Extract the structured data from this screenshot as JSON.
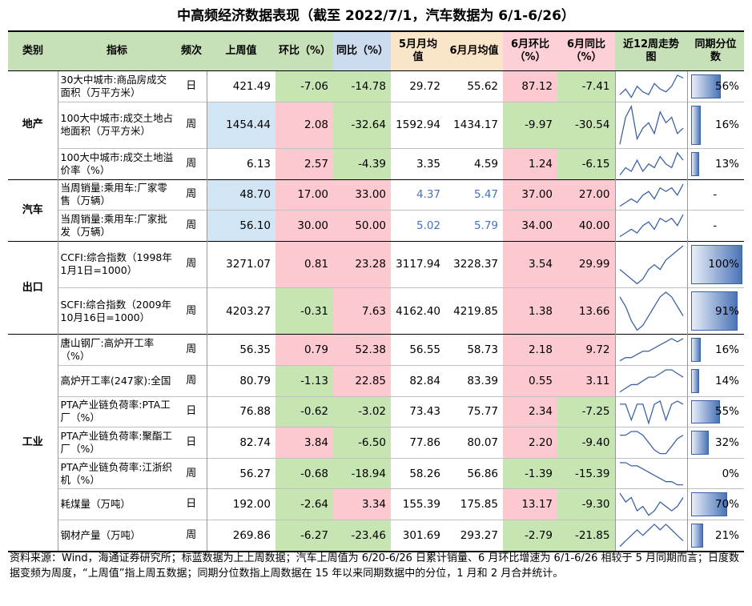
{
  "title": "中高频经济数据表现（截至 2022/7/1，汽车数据为 6/1-6/26）",
  "headers": {
    "category": "类别",
    "indicator": "指标",
    "frequency": "频次",
    "last_week": "上周值",
    "wow": "环比（%）",
    "yoy": "同比（%）",
    "may_avg": "5月月均值",
    "jun_avg": "6月月均值",
    "jun_mom": "6月环比（%）",
    "jun_yoy": "6月同比（%）",
    "trend": "近12周走势图",
    "percentile": "同期分位数"
  },
  "groups": [
    {
      "category": "地产",
      "rows": [
        {
          "indicator": "30大中城市:商品房成交面积（万平方米）",
          "freq": "日",
          "last": "421.49",
          "wow": "-7.06",
          "yoy": "-14.78",
          "may": "29.72",
          "jun": "55.62",
          "mom6": "87.12",
          "yoy6": "-7.41",
          "pct": "56%",
          "pct_value": 0.56,
          "spark": [
            3,
            5,
            2,
            6,
            4,
            3,
            7,
            5,
            4,
            6,
            10,
            9
          ]
        },
        {
          "indicator": "100大中城市:成交土地占地面积（万平方米）",
          "freq": "周",
          "last": "1454.44",
          "wow": "2.08",
          "yoy": "-32.64",
          "may": "1592.94",
          "jun": "1434.17",
          "mom6": "-9.97",
          "yoy6": "-30.54",
          "pct": "16%",
          "pct_value": 0.16,
          "spark": [
            2,
            7,
            9,
            3,
            5,
            6,
            4,
            8,
            6,
            7,
            4,
            5
          ]
        },
        {
          "indicator": "100大中城市:成交土地溢价率（%）",
          "freq": "周",
          "last": "6.13",
          "wow": "2.57",
          "yoy": "-4.39",
          "may": "3.35",
          "jun": "4.59",
          "mom6": "1.24",
          "yoy6": "-6.15",
          "pct": "13%",
          "pct_value": 0.13,
          "spark": [
            2,
            4,
            3,
            6,
            3,
            5,
            4,
            7,
            5,
            4,
            8,
            6
          ]
        }
      ]
    },
    {
      "category": "汽车",
      "rows": [
        {
          "indicator": "当周销量:乘用车:厂家零售（万辆）",
          "freq": "周",
          "last": "48.70",
          "wow": "17.00",
          "yoy": "33.00",
          "may": "4.37",
          "jun": "5.47",
          "mom6": "37.00",
          "yoy6": "27.00",
          "pct": "-",
          "pct_value": 0,
          "spark": [
            3,
            4,
            5,
            4,
            6,
            7,
            5,
            8,
            7,
            8,
            6,
            9
          ]
        },
        {
          "indicator": "当周销量:乘用车:厂家批发（万辆）",
          "freq": "周",
          "last": "56.10",
          "wow": "30.00",
          "yoy": "50.00",
          "may": "5.02",
          "jun": "5.79",
          "mom6": "34.00",
          "yoy6": "40.00",
          "pct": "-",
          "pct_value": 0,
          "spark": [
            2,
            3,
            4,
            3,
            5,
            6,
            4,
            7,
            6,
            7,
            5,
            8
          ]
        }
      ]
    },
    {
      "category": "出口",
      "rows": [
        {
          "indicator": "CCFI:综合指数（1998年1月1日=1000）",
          "freq": "周",
          "last": "3271.07",
          "wow": "0.81",
          "yoy": "23.28",
          "may": "3117.94",
          "jun": "3228.37",
          "mom6": "3.54",
          "yoy6": "29.99",
          "pct": "100%",
          "pct_value": 1.0,
          "spark": [
            6,
            5,
            4,
            3,
            4,
            6,
            7,
            6,
            8,
            9,
            10,
            11
          ]
        },
        {
          "indicator": "SCFI:综合指数（2009年10月16日=1000）",
          "freq": "周",
          "last": "4203.27",
          "wow": "-0.31",
          "yoy": "7.63",
          "may": "4162.40",
          "jun": "4219.85",
          "mom6": "1.38",
          "yoy6": "13.66",
          "pct": "91%",
          "pct_value": 0.91,
          "spark": [
            9,
            7,
            4,
            2,
            3,
            5,
            7,
            9,
            10,
            9,
            7,
            5
          ]
        }
      ]
    },
    {
      "category": "工业",
      "rows": [
        {
          "indicator": "唐山钢厂:高炉开工率（%）",
          "freq": "周",
          "last": "56.35",
          "wow": "0.79",
          "yoy": "52.38",
          "may": "56.55",
          "jun": "58.73",
          "mom6": "2.18",
          "yoy6": "9.72",
          "pct": "16%",
          "pct_value": 0.16,
          "spark": [
            2,
            3,
            3,
            4,
            5,
            5,
            6,
            7,
            8,
            9,
            8,
            9
          ]
        },
        {
          "indicator": "高炉开工率(247家):全国",
          "freq": "周",
          "last": "80.79",
          "wow": "-1.13",
          "yoy": "22.85",
          "may": "82.84",
          "jun": "83.39",
          "mom6": "0.55",
          "yoy6": "3.11",
          "pct": "14%",
          "pct_value": 0.14,
          "spark": [
            3,
            4,
            5,
            5,
            6,
            7,
            7,
            8,
            9,
            9,
            8,
            7
          ]
        },
        {
          "indicator": "PTA产业链负荷率:PTA工厂（%）",
          "freq": "日",
          "last": "76.88",
          "wow": "-0.62",
          "yoy": "-3.02",
          "may": "73.43",
          "jun": "75.77",
          "mom6": "2.34",
          "yoy6": "-7.25",
          "pct": "55%",
          "pct_value": 0.55,
          "spark": [
            8,
            8,
            3,
            8,
            8,
            2,
            8,
            9,
            3,
            8,
            9,
            8
          ]
        },
        {
          "indicator": "PTA产业链负荷率:聚酯工厂（%）",
          "freq": "日",
          "last": "82.74",
          "wow": "3.84",
          "yoy": "-6.50",
          "may": "77.86",
          "jun": "80.07",
          "mom6": "2.20",
          "yoy6": "-9.40",
          "pct": "32%",
          "pct_value": 0.32,
          "spark": [
            8,
            8,
            9,
            9,
            8,
            6,
            4,
            3,
            3,
            5,
            7,
            8
          ]
        },
        {
          "indicator": "PTA产业链负荷率:江浙织机（%）",
          "freq": "周",
          "last": "56.27",
          "wow": "-0.68",
          "yoy": "-18.94",
          "may": "58.26",
          "jun": "56.86",
          "mom6": "-1.39",
          "yoy6": "-15.39",
          "pct": "0%",
          "pct_value": 0.0,
          "spark": [
            9,
            9,
            8,
            8,
            7,
            6,
            5,
            4,
            3,
            3,
            2,
            2
          ]
        },
        {
          "indicator": "耗煤量（万吨）",
          "freq": "日",
          "last": "192.00",
          "wow": "-2.64",
          "yoy": "3.34",
          "may": "155.39",
          "jun": "175.85",
          "mom6": "13.17",
          "yoy6": "-9.30",
          "pct": "70%",
          "pct_value": 0.7,
          "spark": [
            9,
            7,
            8,
            5,
            6,
            4,
            5,
            7,
            6,
            5,
            6,
            8
          ]
        },
        {
          "indicator": "钢材产量（万吨）",
          "freq": "周",
          "last": "269.86",
          "wow": "-6.27",
          "yoy": "-23.46",
          "may": "301.69",
          "jun": "293.27",
          "mom6": "-2.79",
          "yoy6": "-21.85",
          "pct": "21%",
          "pct_value": 0.21,
          "spark": [
            5,
            6,
            7,
            8,
            7,
            8,
            9,
            8,
            9,
            8,
            7,
            6
          ]
        }
      ]
    }
  ],
  "footnote": "资料来源：Wind，海通证券研究所；标蓝数据为上上周数据；汽车上周值为 6/20-6/26 日累计销量、6 月环比增速为 6/1-6/26 相较于 5 月同期而言；日度数据变频为周度，“上周值”指上周五数据；同期分位数指上周数据在 15 年以来同期数据中的分位，1 月和 2 月合并统计。",
  "colors": {
    "green": "#c7e4b3",
    "pink": "#fcc9d0",
    "blue": "#d2e5f5",
    "blue_text": "#4472c4",
    "bar": "#4a74b8"
  }
}
